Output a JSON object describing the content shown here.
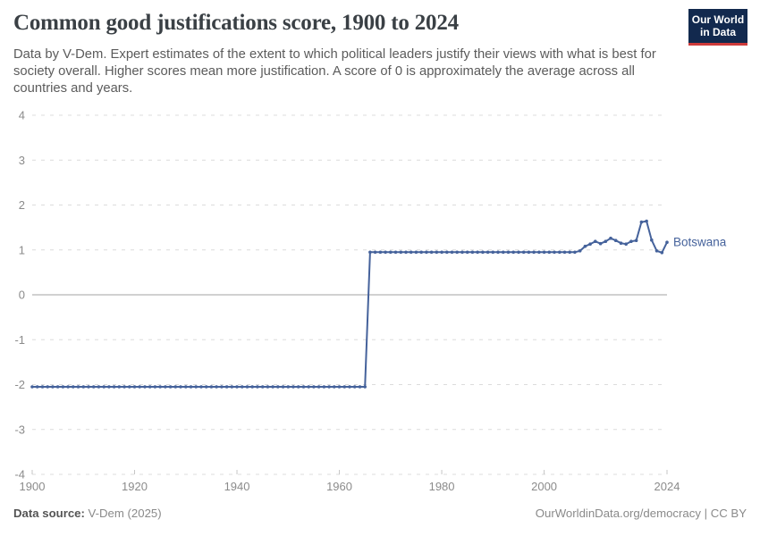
{
  "header": {
    "title": "Common good justifications score, 1900 to 2024",
    "logo": {
      "line1": "Our World",
      "line2": "in Data"
    }
  },
  "subtitle_lines": [
    "Data by V-Dem. Expert estimates of the extent to which political leaders justify their views with what is best for",
    "society overall. Higher scores mean more justification. A score of 0 is approximately the average across all",
    "countries and years."
  ],
  "footer": {
    "source_label": "Data source:",
    "source_value": " V-Dem (2025)",
    "link": "OurWorldinData.org/democracy",
    "separator": " | ",
    "license": "CC BY"
  },
  "colors": {
    "line": "#45629b",
    "gridline": "#dcdcdc",
    "zero_line": "#a3a3a3",
    "tick_text": "#8b8b8b",
    "logo_bg": "#12294e",
    "logo_stripe": "#ce3b3b"
  },
  "chart_data": {
    "type": "line",
    "title": "Common good justifications score, 1900 to 2024",
    "entity_label": "Botswana",
    "xlim": [
      1900,
      2024
    ],
    "ylim": [
      -4,
      4
    ],
    "x_ticks": [
      1900,
      1920,
      1940,
      1960,
      1980,
      2000,
      2024
    ],
    "y_ticks": [
      4,
      3,
      2,
      1,
      0,
      -1,
      -2,
      -3,
      -4
    ],
    "grid": "dashed-horizontal",
    "legend_position": "end-of-line-label",
    "series": [
      {
        "name": "Botswana",
        "x_start": 1900,
        "values": [
          -2.05,
          -2.05,
          -2.05,
          -2.05,
          -2.05,
          -2.05,
          -2.05,
          -2.05,
          -2.05,
          -2.05,
          -2.05,
          -2.05,
          -2.05,
          -2.05,
          -2.05,
          -2.05,
          -2.05,
          -2.05,
          -2.05,
          -2.05,
          -2.05,
          -2.05,
          -2.05,
          -2.05,
          -2.05,
          -2.05,
          -2.05,
          -2.05,
          -2.05,
          -2.05,
          -2.05,
          -2.05,
          -2.05,
          -2.05,
          -2.05,
          -2.05,
          -2.05,
          -2.05,
          -2.05,
          -2.05,
          -2.05,
          -2.05,
          -2.05,
          -2.05,
          -2.05,
          -2.05,
          -2.05,
          -2.05,
          -2.05,
          -2.05,
          -2.05,
          -2.05,
          -2.05,
          -2.05,
          -2.05,
          -2.05,
          -2.05,
          -2.05,
          -2.05,
          -2.05,
          -2.05,
          -2.05,
          -2.05,
          -2.05,
          -2.05,
          -2.05,
          0.95,
          0.95,
          0.95,
          0.95,
          0.95,
          0.95,
          0.95,
          0.95,
          0.95,
          0.95,
          0.95,
          0.95,
          0.95,
          0.95,
          0.95,
          0.95,
          0.95,
          0.95,
          0.95,
          0.95,
          0.95,
          0.95,
          0.95,
          0.95,
          0.95,
          0.95,
          0.95,
          0.95,
          0.95,
          0.95,
          0.95,
          0.95,
          0.95,
          0.95,
          0.95,
          0.95,
          0.95,
          0.95,
          0.95,
          0.95,
          0.95,
          0.98,
          1.08,
          1.13,
          1.19,
          1.14,
          1.19,
          1.26,
          1.21,
          1.15,
          1.13,
          1.19,
          1.21,
          1.62,
          1.64,
          1.22,
          0.98,
          0.94,
          1.17
        ]
      }
    ]
  }
}
